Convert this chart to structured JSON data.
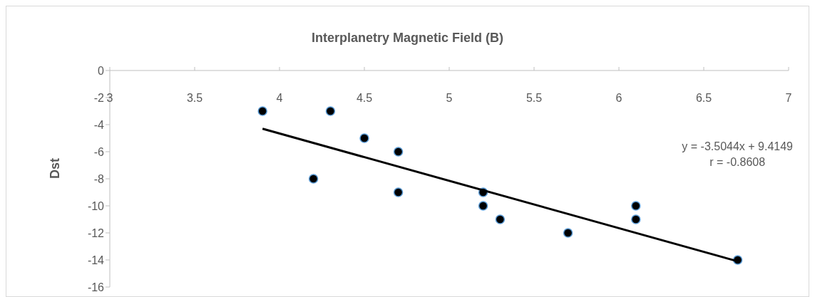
{
  "chart_data": {
    "type": "scatter",
    "title": "Interplanetry Magnetic Field (B)",
    "ylabel": "Dst",
    "series": [
      {
        "color": "#000000",
        "x": [
          3.9,
          4.3,
          4.2,
          4.5,
          4.7,
          4.7,
          5.2,
          5.2,
          5.3,
          5.7,
          6.1,
          6.1,
          6.7
        ],
        "values": [
          -3,
          -3,
          -8,
          -5,
          -6,
          -9,
          -9,
          -10,
          -11,
          -12,
          -10,
          -11,
          -14
        ]
      },
      {
        "type": "line",
        "color": "#000000",
        "marker": "none",
        "x": [
          3.9,
          6.7
        ],
        "values": [
          -4.3,
          -14.1
        ]
      }
    ],
    "annotations": [
      "y = -3.5044x + 9.4149",
      "r = -0.8608"
    ],
    "xlim": [
      3,
      7
    ],
    "xticks": [
      3,
      3.5,
      4,
      4.5,
      5,
      5.5,
      6,
      6.5,
      7
    ],
    "ylim": [
      -16,
      0
    ],
    "yticks": [
      -16,
      -14,
      -12,
      -10,
      -8,
      -6,
      -4,
      -2,
      0
    ],
    "marker": "circle",
    "grid": false
  }
}
